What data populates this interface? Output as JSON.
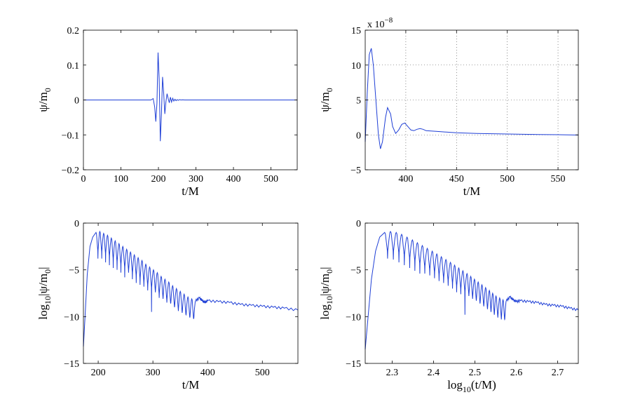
{
  "chart_data": [
    {
      "id": "p1",
      "type": "line",
      "xlabel": "t/M",
      "ylabel": "ψ/m",
      "ylabel_sub": "0",
      "xlabel_sub": "",
      "xlabel_after": "",
      "xlim": [
        0,
        570
      ],
      "ylim": [
        -0.2,
        0.2
      ],
      "xticks": [
        0,
        100,
        200,
        300,
        400,
        500
      ],
      "yticks": [
        -0.2,
        -0.1,
        0,
        0.1,
        0.2
      ],
      "ytick_labels": [
        "−0.2",
        "−0.1",
        "0",
        "0.1",
        "0.2"
      ],
      "grid": false,
      "series": [
        {
          "x": [
            0,
            180,
            186,
            190,
            193,
            196,
            199,
            202,
            205,
            208,
            211,
            214,
            217,
            220,
            223,
            226,
            229,
            232,
            235,
            238,
            241,
            244,
            247,
            250,
            253,
            256,
            260,
            265,
            270,
            280,
            300,
            570
          ],
          "y": [
            0,
            0,
            0.004,
            -0.02,
            -0.062,
            -0.01,
            0.136,
            0.06,
            -0.118,
            -0.04,
            0.066,
            0.02,
            -0.04,
            -0.005,
            0.018,
            0.004,
            -0.008,
            0.008,
            -0.006,
            0.005,
            -0.003,
            0.002,
            -0.002,
            0.001,
            -0.001,
            0.001,
            0,
            0.0005,
            0,
            0,
            0,
            0
          ]
        }
      ]
    },
    {
      "id": "p2",
      "type": "line",
      "xlabel": "t/M",
      "ylabel": "ψ/m",
      "ylabel_sub": "0",
      "xlabel_sub": "",
      "xlabel_after": "",
      "xlim": [
        360,
        570
      ],
      "ylim": [
        -5,
        15
      ],
      "xticks": [
        400,
        450,
        500,
        550
      ],
      "yticks": [
        -5,
        0,
        5,
        10,
        15
      ],
      "ytick_labels": [
        "−5",
        "0",
        "5",
        "10",
        "15"
      ],
      "multiplier_text": "x 10",
      "multiplier_exp": "−8",
      "grid": true,
      "series": [
        {
          "x": [
            360,
            362,
            364,
            366,
            368,
            371,
            373,
            375,
            377,
            380,
            382,
            385,
            387,
            390,
            393,
            396,
            399,
            402,
            405,
            408,
            411,
            414,
            417,
            420,
            425,
            430,
            440,
            450,
            460,
            470,
            480,
            490,
            500,
            510,
            520,
            530,
            540,
            550,
            560,
            570
          ],
          "y": [
            -1,
            6,
            11.5,
            12.4,
            10,
            4,
            0,
            -2,
            -1,
            2.5,
            3.9,
            3,
            1.2,
            0.2,
            0.7,
            1.5,
            1.7,
            1.2,
            0.7,
            0.6,
            0.8,
            0.9,
            0.8,
            0.6,
            0.55,
            0.5,
            0.4,
            0.3,
            0.25,
            0.2,
            0.18,
            0.15,
            0.12,
            0.1,
            0.08,
            0.05,
            0.04,
            0.02,
            0.0,
            -0.02
          ]
        }
      ]
    },
    {
      "id": "p3",
      "type": "line",
      "xlabel": "t/M",
      "ylabel": "log",
      "ylabel_sub": "10",
      "ylabel_after": "|ψ/m",
      "ylabel_sub2": "0",
      "ylabel_end": "|",
      "xlabel_sub": "",
      "xlabel_after": "",
      "xlim": [
        173,
        565
      ],
      "ylim": [
        -15,
        0
      ],
      "xticks": [
        200,
        300,
        400,
        500
      ],
      "yticks": [
        -15,
        -10,
        -5,
        0
      ],
      "ytick_labels": [
        "−15",
        "−10",
        "−5",
        "0"
      ],
      "grid": false,
      "envelope": {
        "rise": [
          [
            173,
            -13.2
          ],
          [
            176,
            -10
          ],
          [
            180,
            -5.5
          ],
          [
            185,
            -2.5
          ],
          [
            190,
            -1.5
          ],
          [
            196,
            -1.0
          ]
        ],
        "lobes_x": [
          196,
          203,
          210,
          217,
          224,
          231,
          238,
          245,
          252,
          259,
          266,
          273,
          280,
          287,
          294,
          301,
          308,
          315,
          322,
          329,
          336,
          343,
          350,
          357,
          364,
          371,
          378
        ],
        "lobes_peak": [
          -1.0,
          -0.9,
          -1.1,
          -1.3,
          -1.6,
          -1.9,
          -2.2,
          -2.5,
          -2.8,
          -3.1,
          -3.4,
          -3.7,
          -4.0,
          -4.4,
          -4.7,
          -5.0,
          -5.3,
          -5.7,
          -6.0,
          -6.3,
          -6.7,
          -7.0,
          -7.3,
          -7.6,
          -7.9,
          -8.1,
          -8.3
        ],
        "nodes_depth": [
          -3.8,
          -3.8,
          -4.2,
          -4.5,
          -4.8,
          -5.0,
          -5.3,
          -5.8,
          -5.3,
          -6.0,
          -6.4,
          -6.6,
          -6.8,
          -7.2,
          -9.5,
          -7.4,
          -8.0,
          -8.1,
          -8.5,
          -8.6,
          -9.0,
          -9.4,
          -9.6,
          -9.8,
          -10.1,
          -10.2,
          -10.4
        ],
        "tail": [
          [
            378,
            -8.3
          ],
          [
            385,
            -8.0
          ],
          [
            390,
            -8.3
          ],
          [
            395,
            -8.5
          ],
          [
            400,
            -8.3
          ],
          [
            420,
            -8.4
          ],
          [
            440,
            -8.5
          ],
          [
            460,
            -8.7
          ],
          [
            480,
            -8.8
          ],
          [
            500,
            -8.9
          ],
          [
            520,
            -9.0
          ],
          [
            540,
            -9.1
          ],
          [
            565,
            -9.3
          ]
        ]
      }
    },
    {
      "id": "p4",
      "type": "line",
      "xlabel": "log",
      "xlabel_sub": "10",
      "xlabel_after": "(t/M)",
      "ylabel": "log",
      "ylabel_sub": "10",
      "ylabel_after": "|ψ/m",
      "ylabel_sub2": "0",
      "ylabel_end": "|",
      "xlim": [
        2.235,
        2.75
      ],
      "ylim": [
        -15,
        0
      ],
      "xticks": [
        2.3,
        2.4,
        2.5,
        2.6,
        2.7
      ],
      "yticks": [
        -15,
        -10,
        -5,
        0
      ],
      "ytick_labels": [
        "−15",
        "−10",
        "−5",
        "0"
      ],
      "grid": false,
      "envelope": {
        "rise": [
          [
            2.235,
            -13.5
          ],
          [
            2.242,
            -10
          ],
          [
            2.25,
            -6
          ],
          [
            2.26,
            -3
          ],
          [
            2.27,
            -1.5
          ],
          [
            2.282,
            -1.0
          ]
        ],
        "lobes_x": [
          2.282,
          2.296,
          2.31,
          2.323,
          2.336,
          2.349,
          2.361,
          2.373,
          2.385,
          2.397,
          2.408,
          2.419,
          2.43,
          2.441,
          2.451,
          2.461,
          2.471,
          2.481,
          2.49,
          2.499,
          2.508,
          2.517,
          2.526,
          2.535,
          2.543,
          2.551,
          2.56,
          2.568,
          2.576
        ],
        "lobes_peak": [
          -1.0,
          -0.9,
          -1.0,
          -1.2,
          -1.5,
          -1.8,
          -2.1,
          -2.4,
          -2.7,
          -3.0,
          -3.3,
          -3.6,
          -3.9,
          -4.2,
          -4.5,
          -4.8,
          -5.1,
          -5.4,
          -5.7,
          -6.0,
          -6.3,
          -6.6,
          -6.9,
          -7.2,
          -7.5,
          -7.8,
          -8.0,
          -8.2,
          -8.3
        ],
        "nodes_depth": [
          -3.8,
          -3.9,
          -4.2,
          -4.5,
          -4.8,
          -5.1,
          -5.4,
          -5.4,
          -5.6,
          -5.9,
          -6.2,
          -6.4,
          -6.7,
          -7.0,
          -7.4,
          -7.6,
          -9.8,
          -7.8,
          -8.1,
          -8.3,
          -8.6,
          -8.9,
          -9.2,
          -9.5,
          -9.8,
          -10.1,
          -10.3,
          -10.3,
          -10.4
        ],
        "tail": [
          [
            2.576,
            -8.3
          ],
          [
            2.585,
            -7.9
          ],
          [
            2.592,
            -8.2
          ],
          [
            2.6,
            -8.4
          ],
          [
            2.61,
            -8.3
          ],
          [
            2.63,
            -8.4
          ],
          [
            2.65,
            -8.5
          ],
          [
            2.67,
            -8.7
          ],
          [
            2.69,
            -8.8
          ],
          [
            2.71,
            -8.9
          ],
          [
            2.73,
            -9.1
          ],
          [
            2.75,
            -9.3
          ]
        ]
      }
    }
  ]
}
